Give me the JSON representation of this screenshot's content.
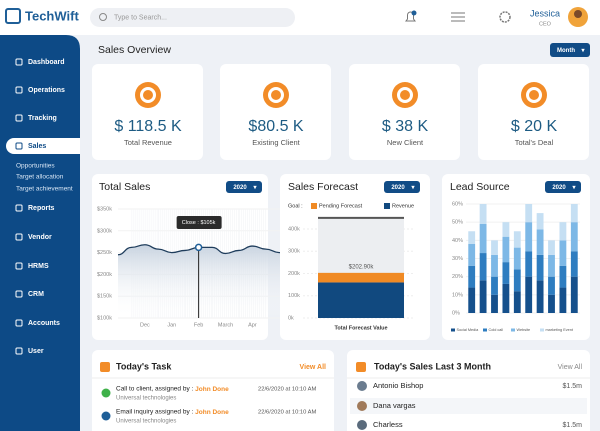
{
  "header": {
    "logo": "TechWift",
    "search_placeholder": "Type to Search...",
    "user_name": "Jessica",
    "user_role": "CEO"
  },
  "sidebar": {
    "items": [
      "Dashboard",
      "Operations",
      "Tracking",
      "Sales",
      "Reports",
      "Vendor",
      "HRMS",
      "CRM",
      "Accounts",
      "User"
    ],
    "sub_items": [
      "Opportunities",
      "Target allocation",
      "Target achievement"
    ]
  },
  "overview": {
    "title": "Sales Overview",
    "period": "Month",
    "cards": [
      {
        "value": "$ 118.5 K",
        "label": "Total Revenue"
      },
      {
        "value": "$80.5 K",
        "label": "Existing Client"
      },
      {
        "value": "$ 38 K",
        "label": "New Client"
      },
      {
        "value": "$ 20 K",
        "label": "Total's Deal"
      }
    ]
  },
  "total_sales": {
    "title": "Total Sales",
    "period": "2020",
    "tooltip": "Close : $105k",
    "chart": {
      "type": "line",
      "x": [
        0,
        0.5,
        1,
        1.5,
        2,
        2.5,
        3,
        3.5,
        4,
        4.5,
        5,
        5.5,
        6,
        6.4
      ],
      "values": [
        245,
        262,
        268,
        258,
        250,
        255,
        262,
        262,
        248,
        255,
        265,
        258,
        250,
        252
      ],
      "color": "#1f3d5c",
      "xlim": [
        0,
        6.4
      ],
      "xticks": [
        {
          "value": 1,
          "label": "Dec"
        },
        {
          "value": 2,
          "label": "Jan"
        },
        {
          "value": 3,
          "label": "Feb"
        },
        {
          "value": 4,
          "label": "March"
        },
        {
          "value": 5,
          "label": "Apr"
        }
      ],
      "ylim": [
        100,
        350
      ],
      "yticks": [
        {
          "value": 100,
          "label": "$100k"
        },
        {
          "value": 150,
          "label": "$150k"
        },
        {
          "value": 200,
          "label": "$200k"
        },
        {
          "value": 250,
          "label": "$250k"
        },
        {
          "value": 300,
          "label": "$300k"
        },
        {
          "value": 350,
          "label": "$350k"
        }
      ]
    }
  },
  "sales_forecast": {
    "title": "Sales Forecast",
    "period": "2020",
    "goal_label": "Goal :",
    "total_label": "$202.90k",
    "chart": {
      "type": "bar",
      "categories": [
        "Total Forecast Value"
      ],
      "goal": 450,
      "series": [
        {
          "name": "Revenue",
          "color": "#11497f",
          "values": [
            159.9
          ]
        },
        {
          "name": "Pending Forecast",
          "color": "#f08a24",
          "values": [
            43
          ]
        }
      ],
      "ylim": [
        0,
        450
      ],
      "yticks": [
        {
          "value": 0,
          "label": "0k"
        },
        {
          "value": 100,
          "label": "100k"
        },
        {
          "value": 200,
          "label": "200k"
        },
        {
          "value": 300,
          "label": "300k"
        },
        {
          "value": 400,
          "label": "400k"
        }
      ]
    }
  },
  "lead_source": {
    "title": "Lead Source",
    "period": "2020",
    "chart": {
      "type": "stacked_bar",
      "categories": [
        null,
        null,
        null,
        null,
        null,
        null,
        null,
        null,
        null,
        null
      ],
      "series": [
        {
          "name": "Social Media",
          "color": "#15508c",
          "values": [
            14,
            18,
            10,
            16,
            12,
            20,
            18,
            10,
            14,
            20
          ]
        },
        {
          "name": "Cold call",
          "color": "#2e7dc0",
          "values": [
            12,
            15,
            10,
            12,
            12,
            14,
            14,
            10,
            12,
            14
          ]
        },
        {
          "name": "Website",
          "color": "#7db8e6",
          "values": [
            12,
            16,
            12,
            14,
            12,
            16,
            14,
            12,
            14,
            16
          ]
        },
        {
          "name": "marketing Event",
          "color": "#c5dff3",
          "values": [
            7,
            11,
            8,
            8,
            9,
            10,
            9,
            8,
            10,
            10
          ]
        }
      ],
      "ylim": [
        0,
        60
      ],
      "yticks": [
        {
          "value": 0,
          "label": "0%"
        },
        {
          "value": 10,
          "label": "10%"
        },
        {
          "value": 20,
          "label": "20%"
        },
        {
          "value": 30,
          "label": "30%"
        },
        {
          "value": 40,
          "label": "40%"
        },
        {
          "value": 50,
          "label": "50%"
        },
        {
          "value": 60,
          "label": "60%"
        }
      ]
    }
  },
  "tasks": {
    "title": "Today's Task",
    "view_all": "View All",
    "items": [
      {
        "text": "Call to client, assigned by :",
        "assignee": "John Done",
        "company": "Universal technologies",
        "date": "22/6/2020 at 10:10 AM"
      },
      {
        "text": "Email inquiry assigned by :",
        "assignee": "John Done",
        "company": "Universal technologies",
        "date": "22/6/2020 at 10:10 AM"
      }
    ]
  },
  "sales_list": {
    "title": "Today's Sales Last 3 Month",
    "view_all": "View All",
    "rows": [
      {
        "name": "Antonio Bishop",
        "amount": "$1.5m"
      },
      {
        "name": "Dana vargas"
      },
      {
        "name": "Charless",
        "amount": "$1.5m"
      }
    ]
  }
}
